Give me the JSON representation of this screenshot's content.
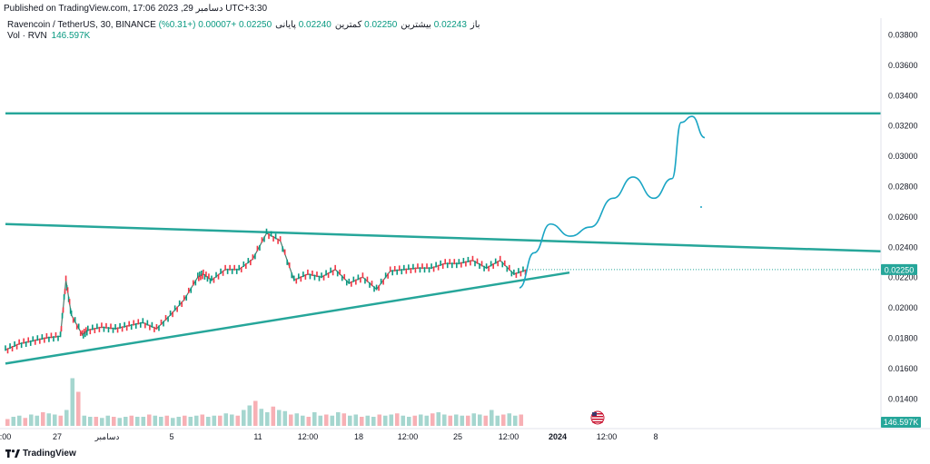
{
  "published": "Published on TradingView.com, 17:06 2023 ,29 دسامبر UTC+3:30",
  "legend": {
    "symbol": "Ravencoin / TetherUS, 30, BINANCE",
    "open_label": "باز",
    "open": "0.02243",
    "high_label": "بیشترین",
    "high": "0.02250",
    "low_label": "کمترین",
    "low": "0.02240",
    "close_label": "پایانی",
    "close": "0.02250",
    "change": "+0.00007 (+0.31%)",
    "vol_label": "Vol · RVN",
    "vol_value": "146.597K"
  },
  "footer": {
    "brand": "TradingView"
  },
  "colors": {
    "teal": "#26a69a",
    "cyan_path": "#1aa5c4",
    "up": "#089981",
    "down": "#f23645",
    "text": "#131722",
    "price_tag_bg": "#26a69a"
  },
  "chart_data": {
    "type": "line",
    "title": "Ravencoin / TetherUS, 30, BINANCE",
    "y_axis": {
      "ticks": [
        "0.03800",
        "0.03600",
        "0.03400",
        "0.03200",
        "0.03000",
        "0.02800",
        "0.02600",
        "0.02400",
        "0.02200",
        "0.02000",
        "0.01800",
        "0.01600",
        "0.01400"
      ],
      "range": [
        0.0125,
        0.039
      ]
    },
    "x_axis": {
      "labels": [
        ":00",
        "27",
        "دسامبر",
        "5",
        "11",
        "12:00",
        "18",
        "12:00",
        "25",
        "12:00",
        "2024",
        "12:00",
        "8"
      ]
    },
    "current_price_label": "0.02250",
    "current_price": 0.0225,
    "volume_label": "146.597K",
    "price_series": {
      "name": "RVN close (approx)",
      "x": [
        0,
        0.5,
        1,
        1.5,
        2,
        2.2,
        2.4,
        2.8,
        3,
        3.5,
        4,
        4.5,
        5,
        5.5,
        6,
        6.5,
        7,
        7.2,
        7.5,
        8,
        8.5,
        9,
        9.5,
        10,
        10.5,
        11,
        11.5,
        12,
        12.5,
        13,
        13.5,
        14,
        14.5,
        15,
        15.5,
        16,
        16.5,
        17,
        17.5,
        18,
        18.5,
        19
      ],
      "y": [
        0.0172,
        0.0176,
        0.0178,
        0.018,
        0.0181,
        0.0218,
        0.0195,
        0.0182,
        0.0185,
        0.0187,
        0.0186,
        0.0188,
        0.019,
        0.0186,
        0.0195,
        0.0205,
        0.022,
        0.0222,
        0.0218,
        0.0225,
        0.0225,
        0.0232,
        0.0249,
        0.0244,
        0.0218,
        0.0222,
        0.022,
        0.0225,
        0.0216,
        0.022,
        0.0212,
        0.0224,
        0.0225,
        0.0226,
        0.0226,
        0.0229,
        0.0229,
        0.0231,
        0.0226,
        0.0231,
        0.0222,
        0.0225
      ]
    },
    "lines": [
      {
        "name": "horizontal-resistance",
        "y": 0.0328
      },
      {
        "name": "descending-trendline",
        "from": 0.0255,
        "to": 0.0237
      },
      {
        "name": "ascending-trendline",
        "from": 0.0163,
        "to": 0.0223
      }
    ],
    "projection": {
      "name": "projected path",
      "points": [
        [
          0.0213,
          0
        ],
        [
          0.0236,
          1
        ],
        [
          0.0255,
          2
        ],
        [
          0.0247,
          3
        ],
        [
          0.0253,
          4
        ],
        [
          0.0272,
          5
        ],
        [
          0.0286,
          6
        ],
        [
          0.0272,
          7
        ],
        [
          0.0285,
          8
        ],
        [
          0.0322,
          9
        ],
        [
          0.0326,
          10
        ],
        [
          0.0312,
          11
        ]
      ]
    },
    "volume": {
      "values": [
        6,
        8,
        9,
        7,
        10,
        9,
        12,
        11,
        10,
        9,
        14,
        42,
        30,
        9,
        8,
        8,
        7,
        9,
        8,
        7,
        8,
        9,
        8,
        8,
        10,
        9,
        8,
        9,
        7,
        8,
        9,
        8,
        9,
        10,
        8,
        9,
        9,
        11,
        10,
        9,
        14,
        18,
        22,
        15,
        12,
        17,
        14,
        13,
        10,
        11,
        9,
        8,
        12,
        9,
        10,
        9,
        12,
        11,
        9,
        10,
        8,
        9,
        8,
        10,
        9,
        10,
        11,
        9,
        8,
        9,
        10,
        9,
        11,
        12,
        10,
        9,
        10,
        9,
        9,
        11,
        10,
        9,
        14,
        9,
        10,
        11,
        9,
        10
      ]
    }
  }
}
